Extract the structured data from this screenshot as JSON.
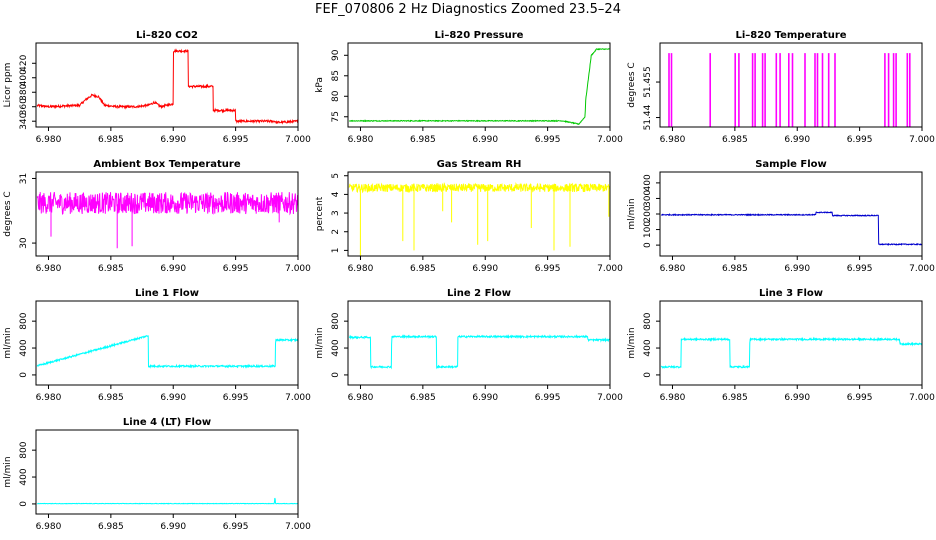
{
  "title": "FEF_070806  2 Hz Diagnostics Zoomed 23.5–24",
  "x_tick_labels": [
    "6.980",
    "6.985",
    "6.990",
    "6.995",
    "7.000"
  ],
  "chart_data": [
    {
      "type": "line",
      "title": "Li–820 CO2",
      "ylabel": "Licor ppm",
      "xlabel": "",
      "color": "#ff0000",
      "xlim": [
        6.979,
        7.0
      ],
      "ylim": [
        332,
        448
      ],
      "yticks": [
        340,
        360,
        380,
        400,
        420
      ],
      "grid": false,
      "noise": 1.5,
      "x": [
        6.979,
        6.98,
        6.9825,
        6.983,
        6.9835,
        6.984,
        6.9845,
        6.9855,
        6.987,
        6.988,
        6.9885,
        6.989,
        6.99,
        6.99001,
        6.9912,
        6.99121,
        6.9932,
        6.99321,
        6.99499,
        6.995,
        6.9982,
        6.99821,
        7.0
      ],
      "y": [
        362,
        360,
        362,
        370,
        376,
        374,
        362,
        360,
        360,
        362,
        366,
        360,
        364,
        437,
        437,
        388,
        388,
        355,
        355,
        340,
        340,
        338,
        340
      ]
    },
    {
      "type": "line",
      "title": "Li–820 Pressure",
      "ylabel": "kPa",
      "xlabel": "",
      "color": "#00c800",
      "xlim": [
        6.979,
        7.0
      ],
      "ylim": [
        72.5,
        93
      ],
      "yticks": [
        75,
        80,
        85,
        90
      ],
      "grid": false,
      "noise": 0.1,
      "x": [
        6.979,
        6.9962,
        6.99621,
        6.9975,
        6.998,
        6.99805,
        6.9985,
        6.9988,
        6.9989,
        7.0
      ],
      "y": [
        74,
        74,
        74,
        73.2,
        75,
        79,
        90,
        91,
        91.5,
        91.5
      ]
    },
    {
      "type": "line",
      "title": "Li–820 Temperature",
      "ylabel": "degrees C",
      "xlabel": "",
      "color": "#ff00ff",
      "xlim": [
        6.979,
        7.0
      ],
      "ylim": [
        51.436,
        51.4715
      ],
      "yticks": [
        51.44,
        51.455
      ],
      "grid": false,
      "noise": 0,
      "baseline": 51.436,
      "spike": 51.467,
      "spikes": [
        6.9797,
        6.9799,
        6.983,
        6.985,
        6.9853,
        6.9864,
        6.9866,
        6.9872,
        6.9874,
        6.9883,
        6.9886,
        6.9893,
        6.9896,
        6.9906,
        6.9914,
        6.9916,
        6.992,
        6.9925,
        6.993,
        6.997,
        6.9973,
        6.9977,
        6.9979,
        6.9988,
        6.999
      ]
    },
    {
      "type": "line",
      "title": "Ambient Box Temperature",
      "ylabel": "degrees C",
      "xlabel": "",
      "color": "#ff00ff",
      "xlim": [
        6.979,
        7.0
      ],
      "ylim": [
        29.8,
        31.1
      ],
      "yticks": [
        30.0,
        31.0
      ],
      "grid": false,
      "noise": 0.17,
      "x": [
        6.979,
        7.0
      ],
      "y": [
        30.62,
        30.62
      ],
      "dips": [
        [
          6.9802,
          30.1
        ],
        [
          6.9855,
          29.92
        ],
        [
          6.9867,
          29.95
        ],
        [
          6.9985,
          30.32
        ]
      ]
    },
    {
      "type": "line",
      "title": "Gas Stream RH",
      "ylabel": "percent",
      "xlabel": "",
      "color": "#ffff00",
      "xlim": [
        6.979,
        7.0
      ],
      "ylim": [
        0.7,
        5.2
      ],
      "yticks": [
        1,
        2,
        3,
        4,
        5
      ],
      "grid": false,
      "noise": 0.22,
      "x": [
        6.979,
        7.0
      ],
      "y": [
        4.35,
        4.35
      ],
      "dips": [
        [
          6.98,
          0.7
        ],
        [
          6.9834,
          1.5
        ],
        [
          6.9843,
          1.0
        ],
        [
          6.9866,
          3.1
        ],
        [
          6.9873,
          2.5
        ],
        [
          6.9894,
          1.3
        ],
        [
          6.9902,
          1.5
        ],
        [
          6.9937,
          2.2
        ],
        [
          6.9955,
          1.0
        ],
        [
          6.9968,
          1.2
        ],
        [
          6.9999,
          2.8
        ]
      ]
    },
    {
      "type": "line",
      "title": "Sample Flow",
      "ylabel": "ml/min",
      "xlabel": "",
      "color": "#0000cd",
      "xlim": [
        6.979,
        7.0
      ],
      "ylim": [
        -70,
        470
      ],
      "yticks": [
        0,
        100,
        200,
        300,
        400
      ],
      "grid": false,
      "noise": 3,
      "x": [
        6.979,
        6.9915,
        6.99151,
        6.9928,
        6.99281,
        6.9965,
        6.99651,
        7.0
      ],
      "y": [
        195,
        195,
        210,
        210,
        190,
        190,
        5,
        5
      ]
    },
    {
      "type": "line",
      "title": "Line 1 Flow",
      "ylabel": "ml/min",
      "xlabel": "",
      "color": "#00ffff",
      "xlim": [
        6.979,
        7.0
      ],
      "ylim": [
        -150,
        1100
      ],
      "yticks": [
        0,
        400,
        800
      ],
      "grid": false,
      "noise": 12,
      "x": [
        6.979,
        6.98791,
        6.982699,
        6.9827,
        6.98449,
        6.9845,
        6.98799,
        6.988,
        6.99819,
        6.9982,
        7.0
      ],
      "y": [
        130,
        580,
        580,
        120,
        120,
        580,
        580,
        130,
        130,
        520,
        520
      ]
    },
    {
      "type": "line",
      "title": "Line 2 Flow",
      "ylabel": "ml/min",
      "xlabel": "",
      "color": "#00ffff",
      "xlim": [
        6.979,
        7.0
      ],
      "ylim": [
        -150,
        1100
      ],
      "yticks": [
        0,
        400,
        800
      ],
      "grid": false,
      "noise": 12,
      "x": [
        6.979,
        6.97991,
        6.980799,
        6.9808,
        6.98249,
        6.9825,
        6.98609,
        6.9861,
        6.98779,
        6.9878,
        6.9982,
        6.99821,
        7.0
      ],
      "y": [
        560,
        560,
        560,
        120,
        120,
        570,
        570,
        120,
        120,
        570,
        570,
        520,
        520
      ]
    },
    {
      "type": "line",
      "title": "Line 3 Flow",
      "ylabel": "ml/min",
      "xlabel": "",
      "color": "#00ffff",
      "xlim": [
        6.979,
        7.0
      ],
      "ylim": [
        -150,
        1100
      ],
      "yticks": [
        0,
        400,
        800
      ],
      "grid": false,
      "noise": 12,
      "x": [
        6.979,
        6.97901,
        6.98069,
        6.9807,
        6.98459,
        6.9846,
        6.98619,
        6.9862,
        6.9982,
        6.99821,
        7.0
      ],
      "y": [
        500,
        120,
        120,
        530,
        530,
        120,
        120,
        530,
        530,
        460,
        460
      ]
    },
    {
      "type": "line",
      "title": "Line 4 (LT) Flow",
      "ylabel": "ml/min",
      "xlabel": "",
      "color": "#00ffff",
      "xlim": [
        6.979,
        7.0
      ],
      "ylim": [
        -150,
        1100
      ],
      "yticks": [
        0,
        400,
        800
      ],
      "grid": false,
      "noise": 3,
      "x": [
        6.979,
        6.9981,
        6.99815,
        6.9982,
        7.0
      ],
      "y": [
        5,
        5,
        110,
        5,
        5
      ]
    }
  ]
}
